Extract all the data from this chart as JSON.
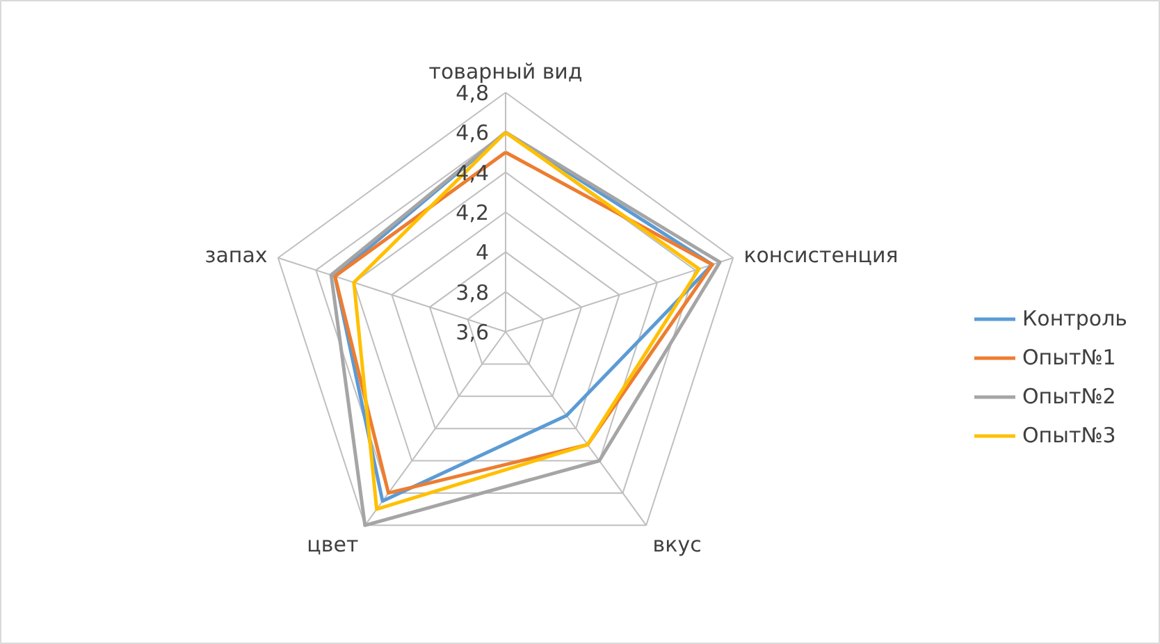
{
  "chart_data": {
    "type": "radar",
    "categories": [
      "товарный вид",
      "консистенция",
      "вкус",
      "цвет",
      "запах"
    ],
    "ylim": [
      3.6,
      4.8
    ],
    "yticks": [
      {
        "value": 3.6,
        "label": "3,6"
      },
      {
        "value": 3.8,
        "label": "3,8"
      },
      {
        "value": 4.0,
        "label": "4"
      },
      {
        "value": 4.2,
        "label": "4,2"
      },
      {
        "value": 4.4,
        "label": "4,4"
      },
      {
        "value": 4.6,
        "label": "4,6"
      },
      {
        "value": 4.8,
        "label": "4,8"
      }
    ],
    "grid": true,
    "legend": "right",
    "series": [
      {
        "name": "Контроль",
        "color": "#5b9bd5",
        "values": [
          4.6,
          4.69,
          4.12,
          4.65,
          4.5
        ]
      },
      {
        "name": "Опыт№1",
        "color": "#ed7d31",
        "values": [
          4.5,
          4.69,
          4.3,
          4.6,
          4.5
        ]
      },
      {
        "name": "Опыт№2",
        "color": "#a5a5a5",
        "values": [
          4.6,
          4.73,
          4.4,
          4.8,
          4.52
        ]
      },
      {
        "name": "Опыт№3",
        "color": "#ffc000",
        "values": [
          4.6,
          4.62,
          4.3,
          4.7,
          4.4
        ]
      }
    ]
  }
}
